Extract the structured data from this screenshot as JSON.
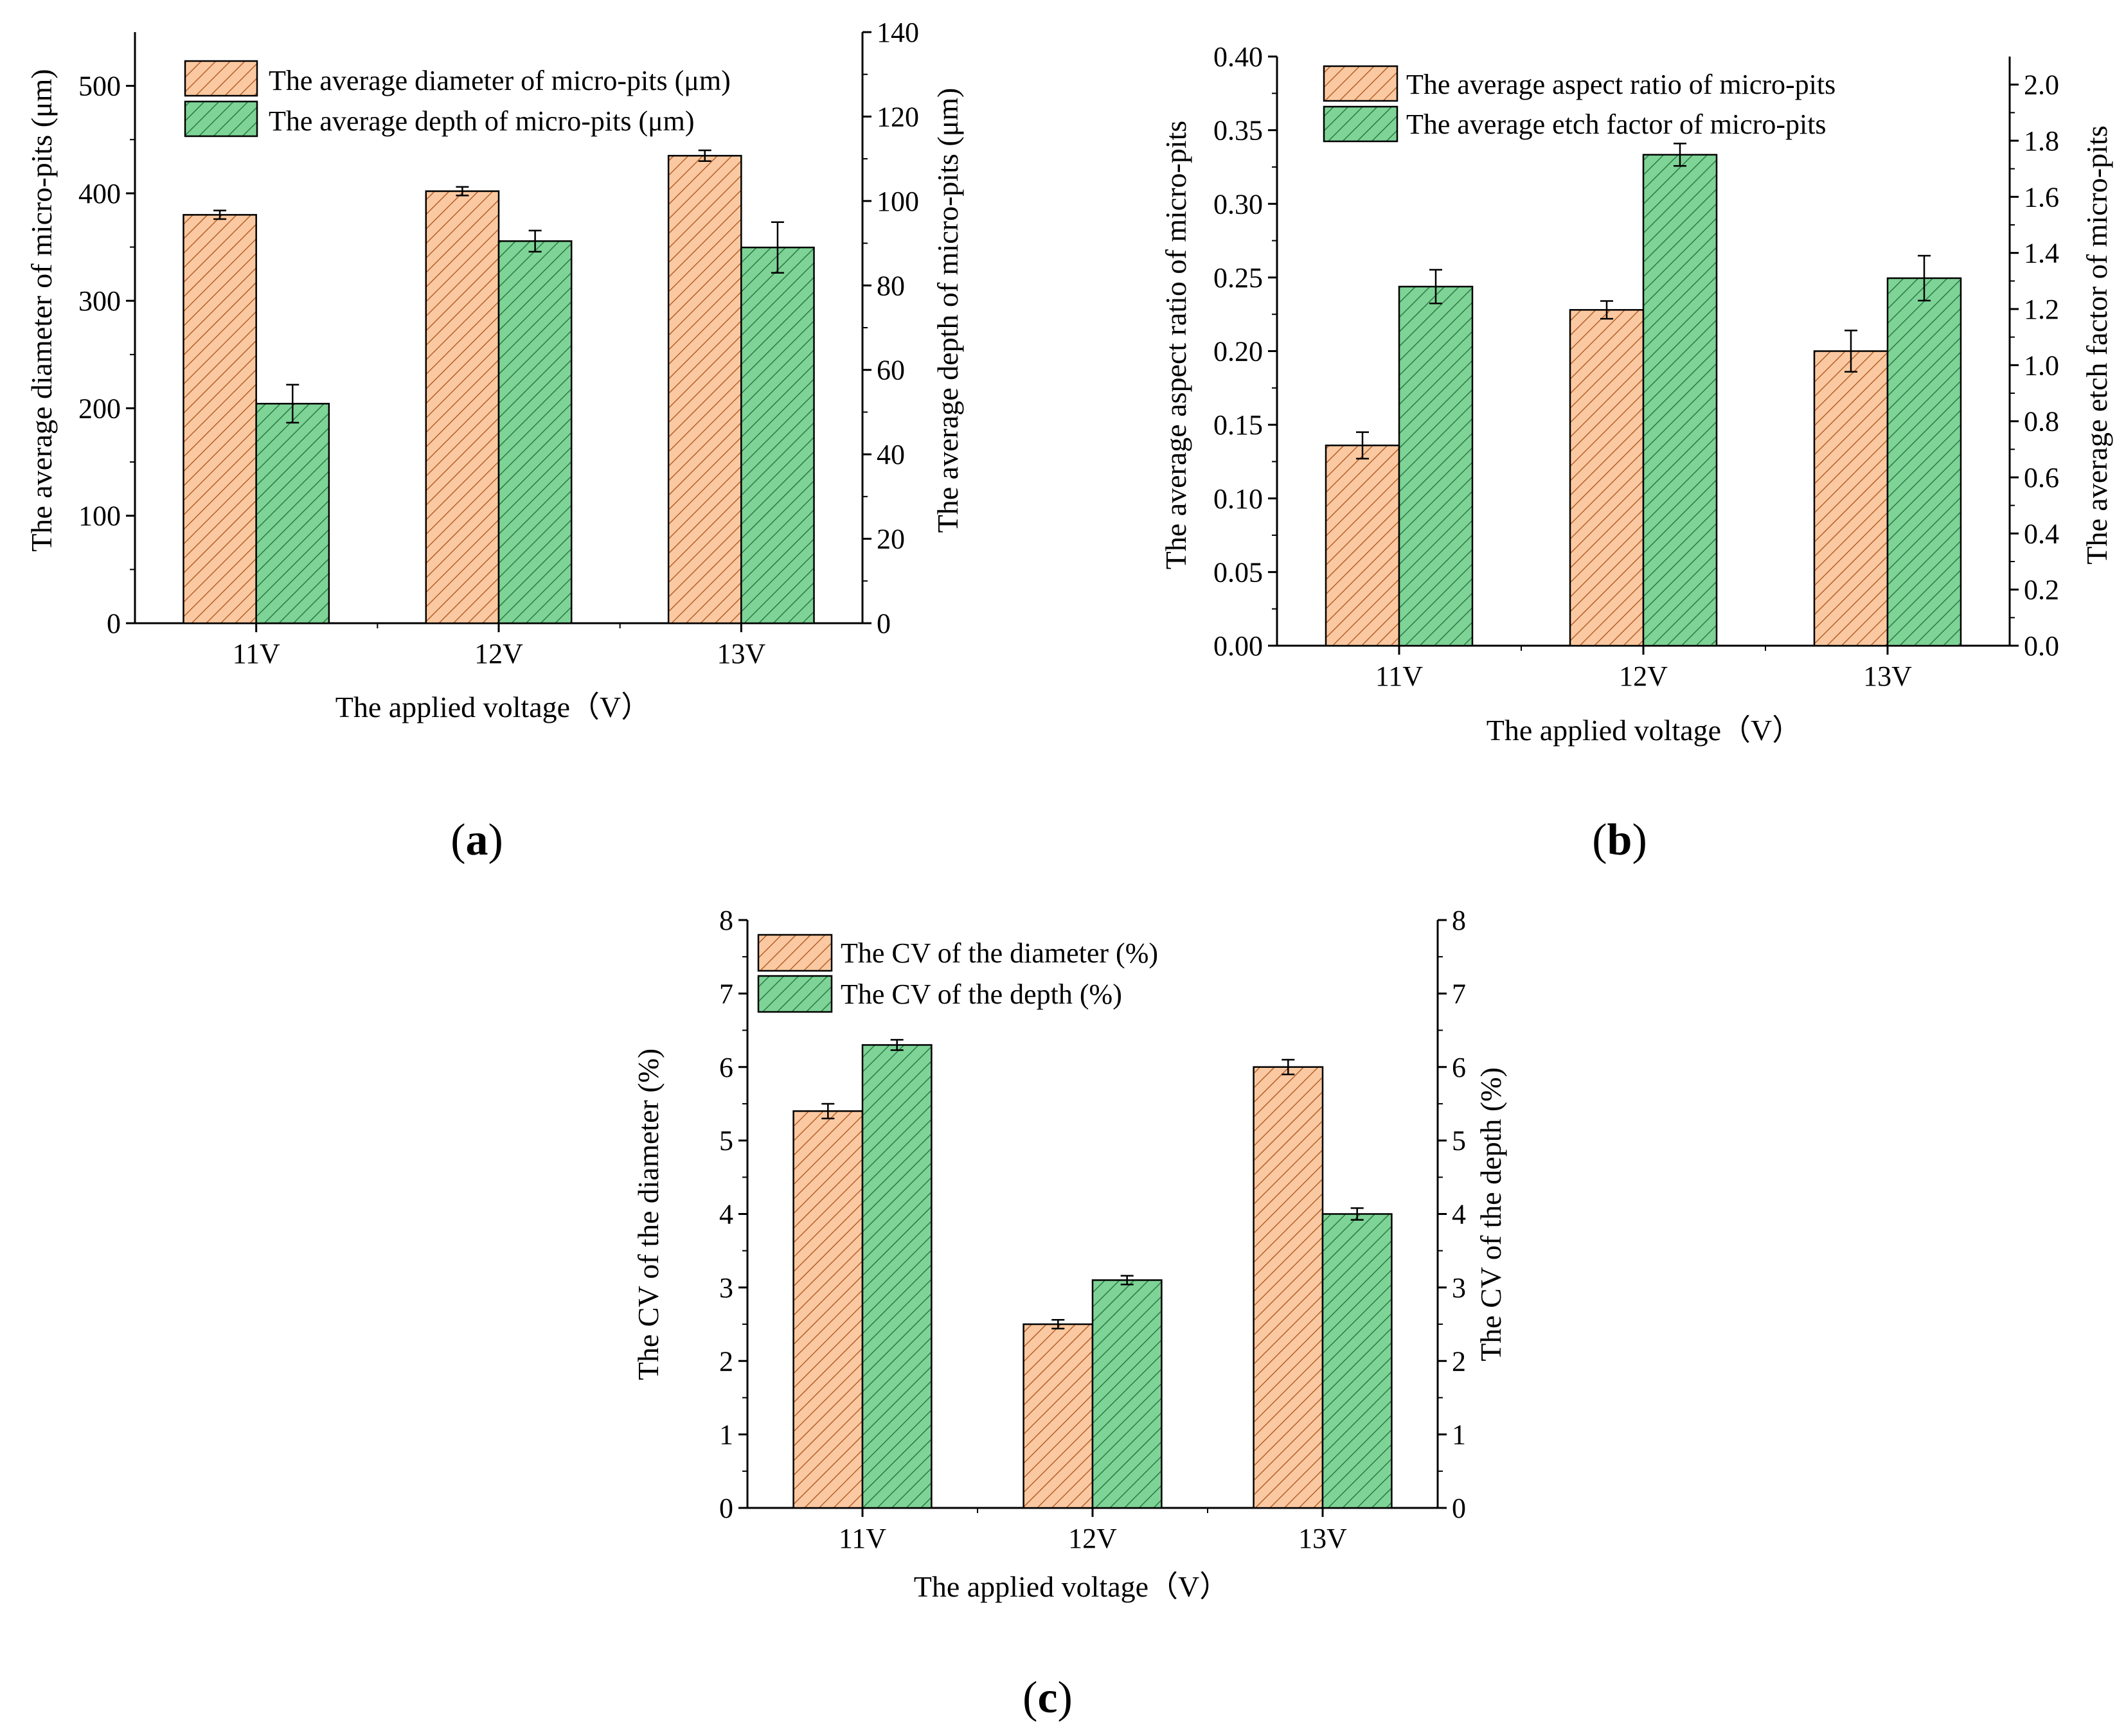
{
  "figure": {
    "colors": {
      "orange_fill": "#FBC9A1",
      "orange_hatch": "#B5602A",
      "green_fill": "#7ED396",
      "green_hatch": "#2C7A45",
      "axis": "#000000"
    }
  },
  "chart_data": [
    {
      "type": "bar",
      "panel": "(a)",
      "panel_letter": "a",
      "categories": [
        "11V",
        "12V",
        "13V"
      ],
      "xlabel": "The applied voltage（V）",
      "ylabel": "The average diameter of micro-pits (μm)",
      "y2label": "The average depth of micro-pits (μm)",
      "ylim": [
        0,
        550
      ],
      "yticks": [
        0,
        100,
        200,
        300,
        400,
        500
      ],
      "y2lim": [
        0,
        140
      ],
      "y2ticks": [
        0,
        20,
        40,
        60,
        80,
        100,
        120,
        140
      ],
      "series": [
        {
          "name": "The average diameter of micro-pits (μm)",
          "axis": "left",
          "color": "orange",
          "values": [
            380,
            402,
            435
          ],
          "errors": [
            4,
            4,
            5
          ]
        },
        {
          "name": "The average depth of micro-pits (μm)",
          "axis": "right",
          "color": "green",
          "values": [
            52,
            90.5,
            89
          ],
          "errors": [
            4.5,
            2.5,
            6
          ]
        }
      ]
    },
    {
      "type": "bar",
      "panel": "(b)",
      "panel_letter": "b",
      "categories": [
        "11V",
        "12V",
        "13V"
      ],
      "xlabel": "The applied voltage（V）",
      "ylabel": "The average aspect ratio of micro-pits",
      "y2label": "The average etch factor of micro-pits",
      "ylim": [
        0,
        0.4
      ],
      "yticks": [
        "0.00",
        "0.05",
        "0.10",
        "0.15",
        "0.20",
        "0.25",
        "0.30",
        "0.35",
        "0.40"
      ],
      "y2lim": [
        0,
        2.1
      ],
      "y2ticks": [
        "0.0",
        "0.2",
        "0.4",
        "0.6",
        "0.8",
        "1.0",
        "1.2",
        "1.4",
        "1.6",
        "1.8",
        "2.0"
      ],
      "series": [
        {
          "name": "The average aspect ratio of micro-pits",
          "axis": "left",
          "color": "orange",
          "values": [
            0.136,
            0.228,
            0.2
          ],
          "errors": [
            0.009,
            0.006,
            0.014
          ]
        },
        {
          "name": "The average etch factor of micro-pits",
          "axis": "right",
          "color": "green",
          "values": [
            1.28,
            1.75,
            1.31
          ],
          "errors": [
            0.06,
            0.04,
            0.08
          ]
        }
      ]
    },
    {
      "type": "bar",
      "panel": "(c)",
      "panel_letter": "c",
      "categories": [
        "11V",
        "12V",
        "13V"
      ],
      "xlabel": "The applied voltage（V）",
      "ylabel": "The CV of the diameter (%)",
      "y2label": "The CV of the depth (%)",
      "ylim": [
        0,
        8
      ],
      "yticks": [
        0,
        1,
        2,
        3,
        4,
        5,
        6,
        7,
        8
      ],
      "y2lim": [
        0,
        8
      ],
      "y2ticks": [
        0,
        1,
        2,
        3,
        4,
        5,
        6,
        7,
        8
      ],
      "series": [
        {
          "name": "The CV of the diameter (%)",
          "axis": "left",
          "color": "orange",
          "values": [
            5.4,
            2.5,
            6.0
          ],
          "errors": [
            0.1,
            0.06,
            0.1
          ]
        },
        {
          "name": "The CV of the depth (%)",
          "axis": "right",
          "color": "green",
          "values": [
            6.3,
            3.1,
            4.0
          ],
          "errors": [
            0.07,
            0.06,
            0.08
          ]
        }
      ]
    }
  ]
}
